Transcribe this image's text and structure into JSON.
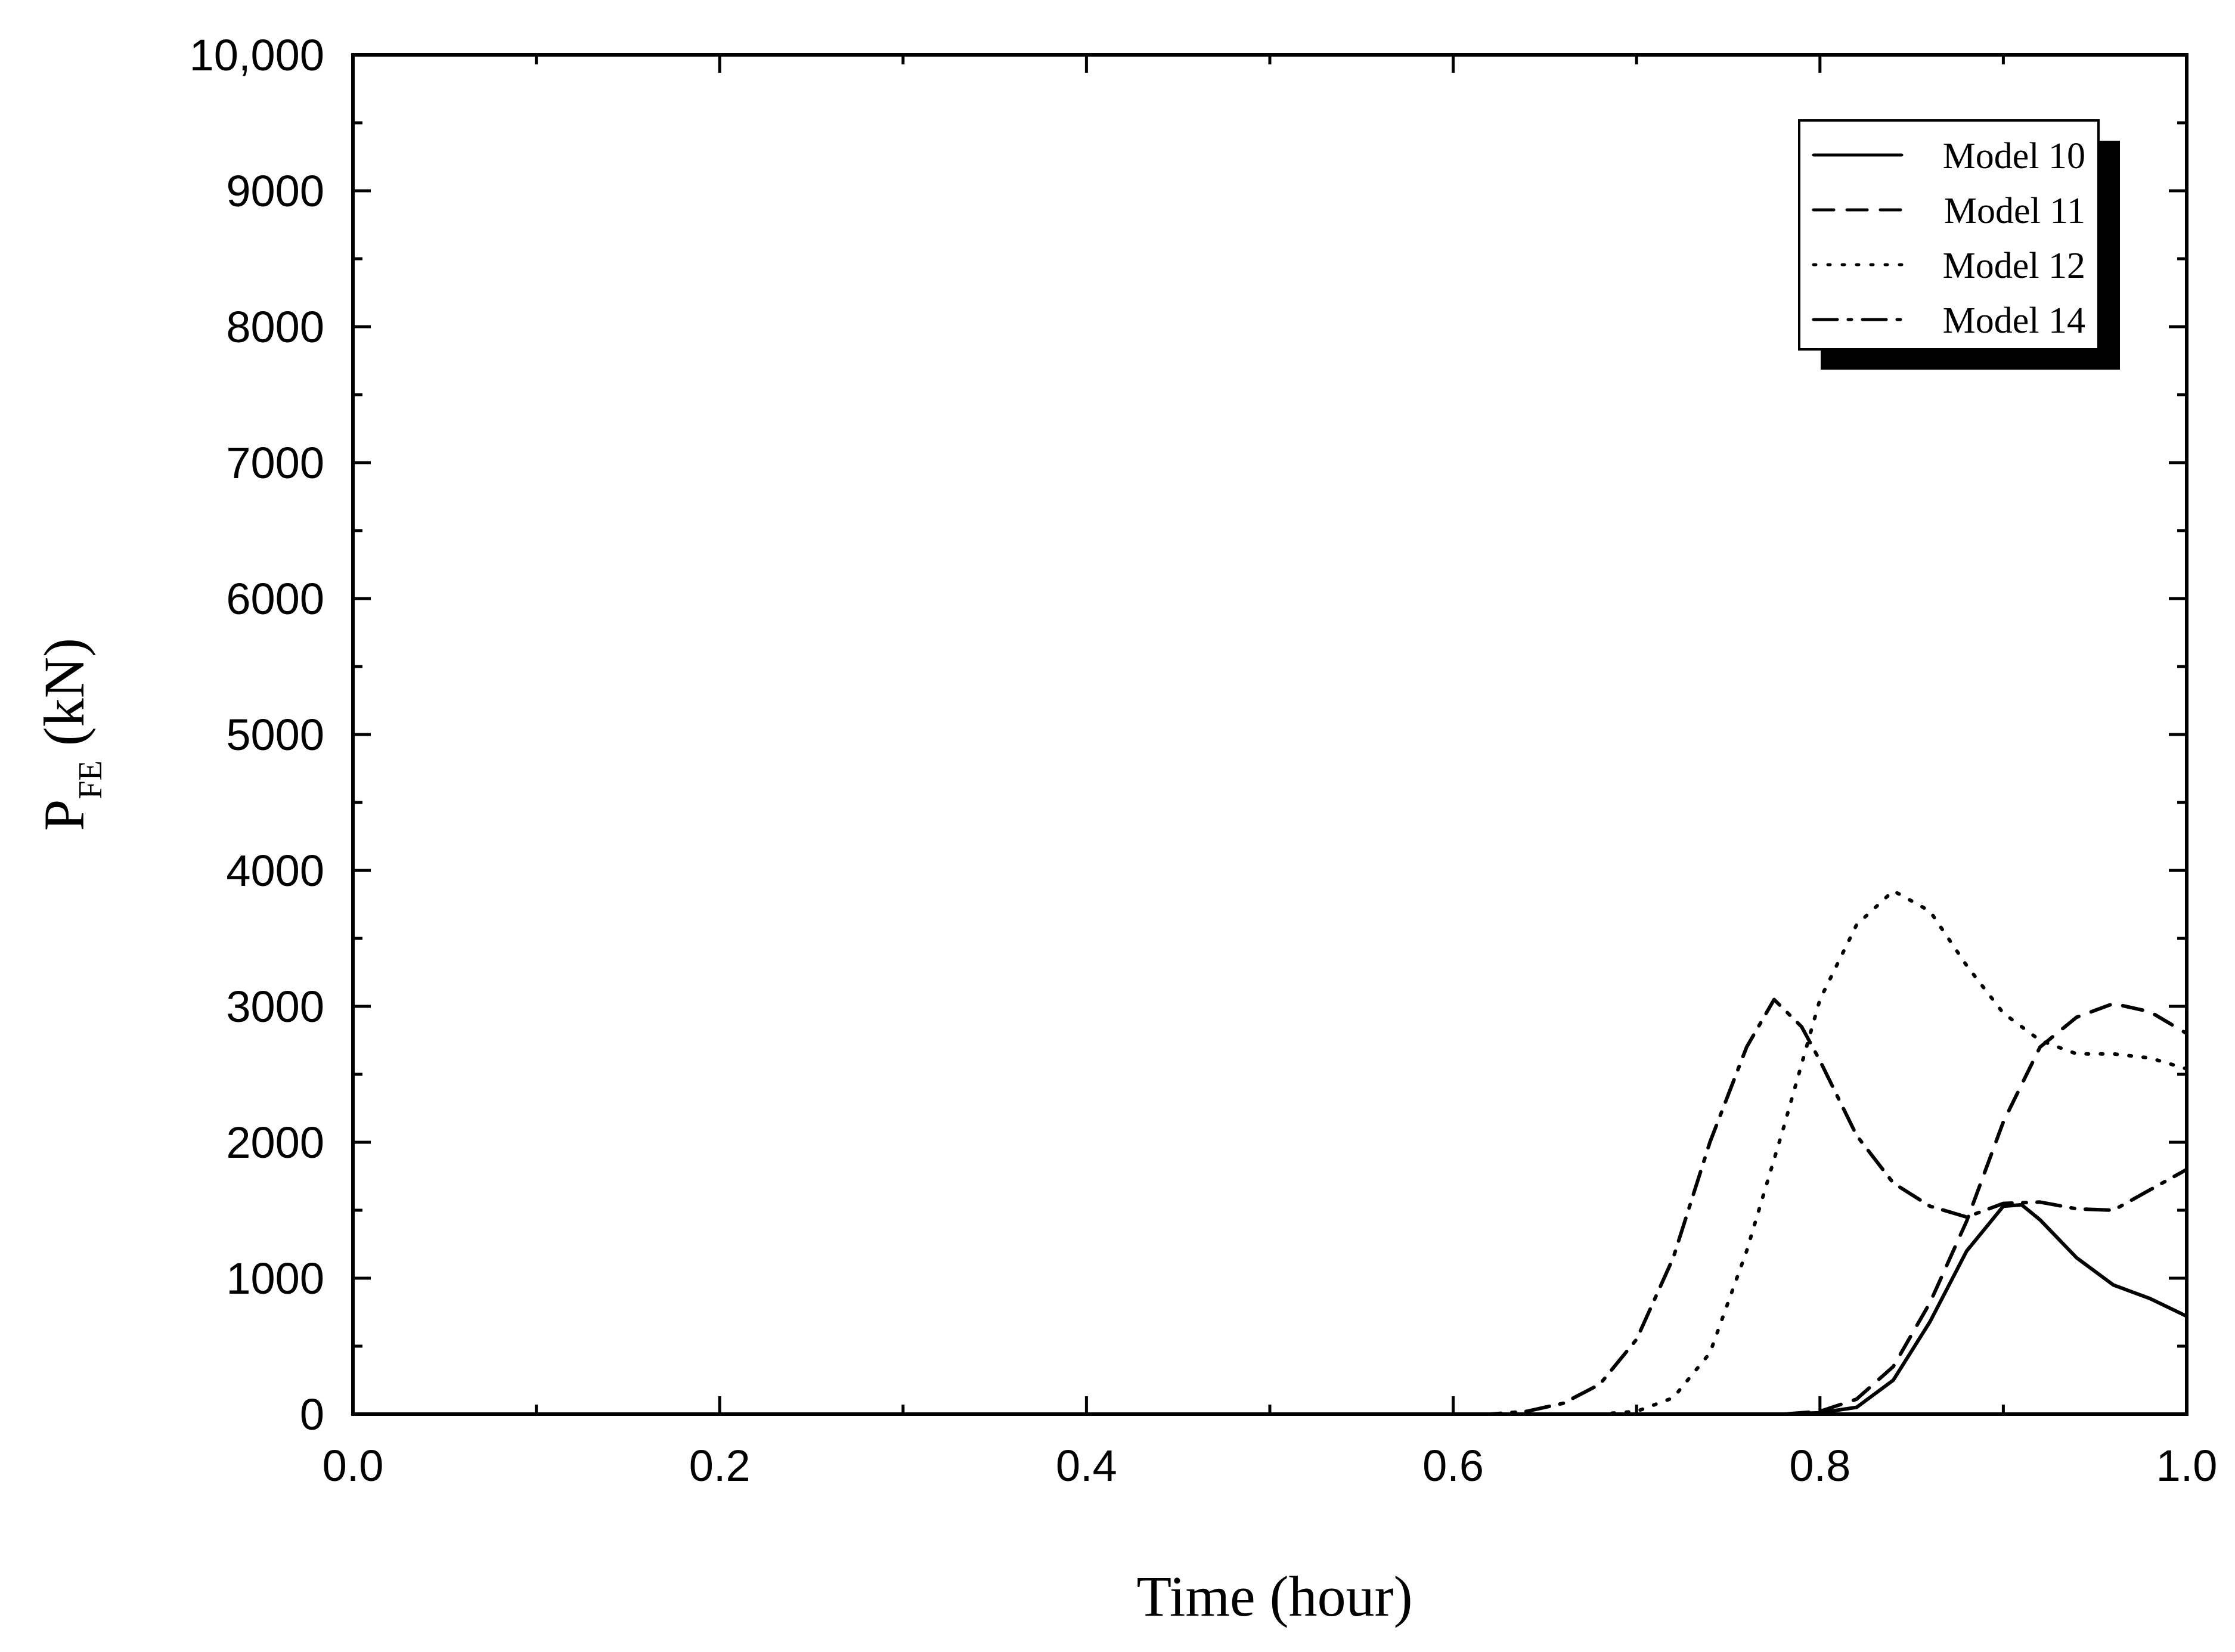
{
  "chart_data": {
    "type": "line",
    "title": "",
    "xlabel": "Time (hour)",
    "ylabel": {
      "main": "P",
      "subscript": "FE",
      "unit": " (kN)"
    },
    "xlim": [
      0.0,
      1.0
    ],
    "ylim": [
      0,
      10000
    ],
    "xticks": [
      {
        "value": 0.0,
        "label": "0.0"
      },
      {
        "value": 0.2,
        "label": "0.2"
      },
      {
        "value": 0.4,
        "label": "0.4"
      },
      {
        "value": 0.6,
        "label": "0.6"
      },
      {
        "value": 0.8,
        "label": "0.8"
      },
      {
        "value": 1.0,
        "label": "1.0"
      }
    ],
    "yticks": [
      {
        "value": 0,
        "label": "0"
      },
      {
        "value": 1000,
        "label": "1000"
      },
      {
        "value": 2000,
        "label": "2000"
      },
      {
        "value": 3000,
        "label": "3000"
      },
      {
        "value": 4000,
        "label": "4000"
      },
      {
        "value": 5000,
        "label": "5000"
      },
      {
        "value": 6000,
        "label": "6000"
      },
      {
        "value": 7000,
        "label": "7000"
      },
      {
        "value": 8000,
        "label": "8000"
      },
      {
        "value": 9000,
        "label": "9000"
      },
      {
        "value": 10000,
        "label": "10,000"
      }
    ],
    "grid": false,
    "legend_position": "top-right",
    "series": [
      {
        "name": "Model 10",
        "line_style": "solid",
        "color": "#000000",
        "x": [
          0.0,
          0.78,
          0.8,
          0.82,
          0.84,
          0.86,
          0.88,
          0.9,
          0.91,
          0.92,
          0.94,
          0.96,
          0.98,
          1.0
        ],
        "y": [
          0,
          0,
          10,
          50,
          250,
          680,
          1200,
          1530,
          1540,
          1430,
          1150,
          950,
          850,
          720
        ]
      },
      {
        "name": "Model 11",
        "line_style": "dashed",
        "color": "#000000",
        "x": [
          0.0,
          0.78,
          0.8,
          0.82,
          0.84,
          0.86,
          0.88,
          0.9,
          0.92,
          0.94,
          0.96,
          0.98,
          1.0
        ],
        "y": [
          0,
          0,
          20,
          110,
          350,
          820,
          1420,
          2150,
          2700,
          2920,
          3020,
          2960,
          2800
        ]
      },
      {
        "name": "Model 12",
        "line_style": "dotted",
        "color": "#000000",
        "x": [
          0.0,
          0.68,
          0.7,
          0.72,
          0.74,
          0.76,
          0.78,
          0.8,
          0.82,
          0.84,
          0.86,
          0.88,
          0.9,
          0.92,
          0.94,
          0.96,
          0.98,
          1.0
        ],
        "y": [
          0,
          0,
          20,
          120,
          450,
          1200,
          2100,
          3050,
          3600,
          3850,
          3700,
          3300,
          2950,
          2750,
          2650,
          2650,
          2620,
          2540
        ]
      },
      {
        "name": "Model 14",
        "line_style": "dash-dot",
        "color": "#000000",
        "x": [
          0.0,
          0.62,
          0.64,
          0.66,
          0.68,
          0.7,
          0.72,
          0.74,
          0.76,
          0.775,
          0.79,
          0.8,
          0.82,
          0.84,
          0.86,
          0.88,
          0.9,
          0.92,
          0.94,
          0.96,
          0.98,
          1.0
        ],
        "y": [
          0,
          0,
          20,
          80,
          220,
          550,
          1150,
          2000,
          2700,
          3050,
          2850,
          2600,
          2050,
          1700,
          1530,
          1450,
          1550,
          1560,
          1510,
          1500,
          1650,
          1800
        ]
      }
    ]
  }
}
